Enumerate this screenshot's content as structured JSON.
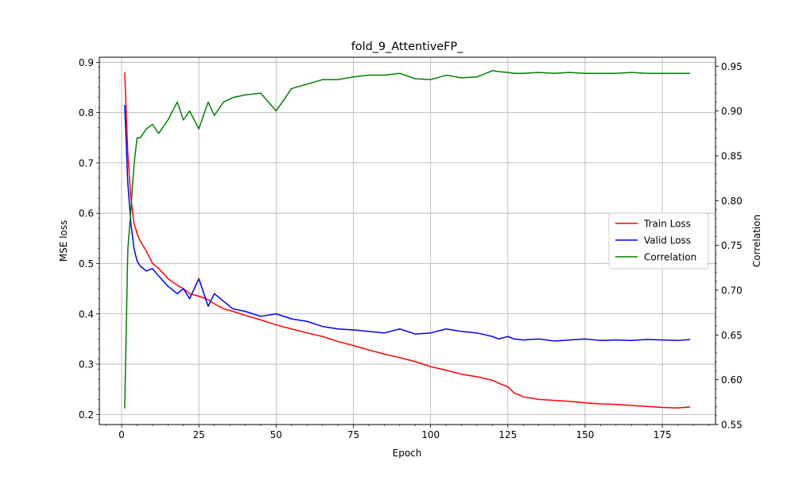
{
  "chart_data": {
    "type": "line",
    "title": "fold_9_AttentiveFP_",
    "xlabel": "Epoch",
    "ylabel": "MSE loss",
    "y2label": "Correlation",
    "xlim": [
      -7.2,
      192.2
    ],
    "ylim": [
      0.18,
      0.91
    ],
    "y2lim": [
      0.55,
      0.96
    ],
    "xticks": [
      "0",
      "25",
      "50",
      "75",
      "100",
      "125",
      "150",
      "175"
    ],
    "xtick_values": [
      0,
      25,
      50,
      75,
      100,
      125,
      150,
      175
    ],
    "yticks": [
      "0.2",
      "0.3",
      "0.4",
      "0.5",
      "0.6",
      "0.7",
      "0.8",
      "0.9"
    ],
    "ytick_values": [
      0.2,
      0.3,
      0.4,
      0.5,
      0.6,
      0.7,
      0.8,
      0.9
    ],
    "y2ticks": [
      "0.55",
      "0.60",
      "0.65",
      "0.70",
      "0.75",
      "0.80",
      "0.85",
      "0.90",
      "0.95"
    ],
    "y2tick_values": [
      0.55,
      0.6,
      0.65,
      0.7,
      0.75,
      0.8,
      0.85,
      0.9,
      0.95
    ],
    "grid": true,
    "legend_position": "center-right",
    "x": [
      1,
      2,
      3,
      4,
      5,
      6,
      8,
      10,
      12,
      15,
      18,
      20,
      22,
      25,
      28,
      30,
      33,
      36,
      40,
      45,
      50,
      55,
      60,
      65,
      70,
      75,
      80,
      85,
      90,
      95,
      100,
      105,
      110,
      115,
      120,
      122,
      125,
      127,
      130,
      135,
      140,
      145,
      150,
      155,
      160,
      165,
      170,
      175,
      180,
      184
    ],
    "series": [
      {
        "name": "Train Loss",
        "color": "#ff0000",
        "axis": "left",
        "values": [
          0.88,
          0.72,
          0.63,
          0.58,
          0.56,
          0.545,
          0.525,
          0.5,
          0.49,
          0.47,
          0.457,
          0.45,
          0.44,
          0.435,
          0.428,
          0.42,
          0.41,
          0.405,
          0.397,
          0.388,
          0.378,
          0.37,
          0.362,
          0.355,
          0.345,
          0.337,
          0.328,
          0.32,
          0.313,
          0.305,
          0.295,
          0.288,
          0.28,
          0.275,
          0.268,
          0.262,
          0.255,
          0.243,
          0.235,
          0.23,
          0.228,
          0.226,
          0.223,
          0.221,
          0.22,
          0.218,
          0.216,
          0.214,
          0.213,
          0.215
        ]
      },
      {
        "name": "Valid Loss",
        "color": "#0000ff",
        "axis": "left",
        "values": [
          0.815,
          0.66,
          0.58,
          0.53,
          0.505,
          0.495,
          0.485,
          0.49,
          0.475,
          0.455,
          0.44,
          0.45,
          0.43,
          0.47,
          0.415,
          0.44,
          0.425,
          0.41,
          0.405,
          0.395,
          0.4,
          0.39,
          0.385,
          0.375,
          0.37,
          0.368,
          0.365,
          0.362,
          0.37,
          0.36,
          0.362,
          0.37,
          0.365,
          0.362,
          0.355,
          0.35,
          0.355,
          0.35,
          0.348,
          0.35,
          0.346,
          0.348,
          0.35,
          0.347,
          0.348,
          0.347,
          0.349,
          0.348,
          0.347,
          0.349
        ]
      },
      {
        "name": "Correlation",
        "color": "#008000",
        "axis": "right",
        "values": [
          0.568,
          0.745,
          0.79,
          0.84,
          0.87,
          0.87,
          0.88,
          0.885,
          0.875,
          0.89,
          0.91,
          0.89,
          0.9,
          0.88,
          0.91,
          0.895,
          0.91,
          0.915,
          0.918,
          0.92,
          0.9,
          0.925,
          0.93,
          0.935,
          0.935,
          0.938,
          0.94,
          0.94,
          0.942,
          0.936,
          0.935,
          0.94,
          0.937,
          0.938,
          0.945,
          0.944,
          0.943,
          0.942,
          0.942,
          0.943,
          0.942,
          0.943,
          0.942,
          0.942,
          0.942,
          0.943,
          0.942,
          0.942,
          0.942,
          0.942
        ]
      }
    ]
  }
}
